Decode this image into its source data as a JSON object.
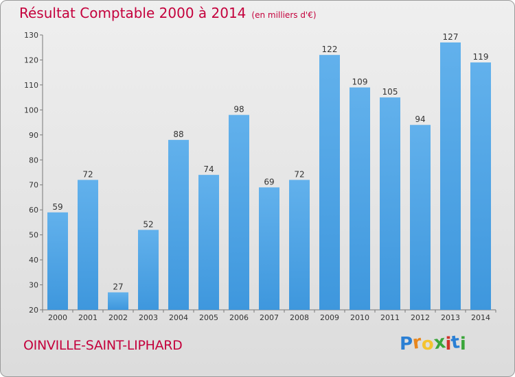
{
  "title": "Résultat Comptable 2000 à 2014",
  "subtitle": "(en milliers d'€)",
  "city": "OINVILLE-SAINT-LIPHARD",
  "logo": {
    "letters": [
      "P",
      "r",
      "o",
      "x",
      "i",
      "t",
      "i"
    ],
    "colors": [
      "#2a7fd4",
      "#e8871e",
      "#f4c430",
      "#3aa53a",
      "#d0332b",
      "#2a7fd4",
      "#3aa53a"
    ]
  },
  "colors": {
    "bar": "#3e97dd",
    "bar_light": "#62b1ec",
    "text": "#c4003c"
  },
  "chart_data": {
    "type": "bar",
    "categories": [
      "2000",
      "2001",
      "2002",
      "2003",
      "2004",
      "2005",
      "2006",
      "2007",
      "2008",
      "2009",
      "2010",
      "2011",
      "2012",
      "2013",
      "2014"
    ],
    "values": [
      59,
      72,
      27,
      52,
      88,
      74,
      98,
      69,
      72,
      122,
      109,
      105,
      94,
      127,
      119
    ],
    "title": "Résultat Comptable 2000 à 2014",
    "xlabel": "",
    "ylabel": "",
    "ylim": [
      20,
      130
    ],
    "yticks": [
      20,
      30,
      40,
      50,
      60,
      70,
      80,
      90,
      100,
      110,
      120,
      130
    ],
    "grid": false,
    "data_labels": true
  }
}
